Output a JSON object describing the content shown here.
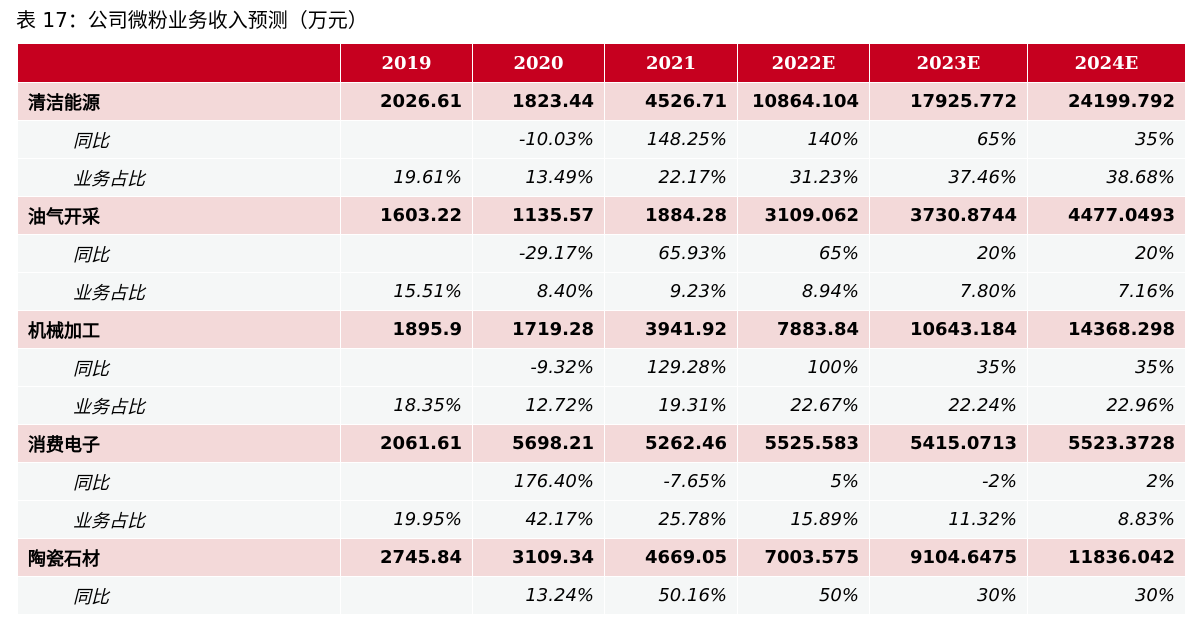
{
  "title": "表 17：公司微粉业务收入预测（万元）",
  "header": [
    "",
    "2019",
    "2020",
    "2021",
    "2022E",
    "2023E",
    "2024E"
  ],
  "rows": [
    {
      "type": "main",
      "label": "清洁能源",
      "values": [
        "2026.61",
        "1823.44",
        "4526.71",
        "10864.104",
        "17925.772",
        "24199.792"
      ]
    },
    {
      "type": "sub",
      "label": "同比",
      "values": [
        "",
        "-10.03%",
        "148.25%",
        "140%",
        "65%",
        "35%"
      ]
    },
    {
      "type": "sub",
      "label": "业务占比",
      "values": [
        "19.61%",
        "13.49%",
        "22.17%",
        "31.23%",
        "37.46%",
        "38.68%"
      ]
    },
    {
      "type": "main",
      "label": "油气开采",
      "values": [
        "1603.22",
        "1135.57",
        "1884.28",
        "3109.062",
        "3730.8744",
        "4477.0493"
      ]
    },
    {
      "type": "sub",
      "label": "同比",
      "values": [
        "",
        "-29.17%",
        "65.93%",
        "65%",
        "20%",
        "20%"
      ]
    },
    {
      "type": "sub",
      "label": "业务占比",
      "values": [
        "15.51%",
        "8.40%",
        "9.23%",
        "8.94%",
        "7.80%",
        "7.16%"
      ]
    },
    {
      "type": "main",
      "label": "机械加工",
      "values": [
        "1895.9",
        "1719.28",
        "3941.92",
        "7883.84",
        "10643.184",
        "14368.298"
      ]
    },
    {
      "type": "sub",
      "label": "同比",
      "values": [
        "",
        "-9.32%",
        "129.28%",
        "100%",
        "35%",
        "35%"
      ]
    },
    {
      "type": "sub",
      "label": "业务占比",
      "values": [
        "18.35%",
        "12.72%",
        "19.31%",
        "22.67%",
        "22.24%",
        "22.96%"
      ]
    },
    {
      "type": "main",
      "label": "消费电子",
      "values": [
        "2061.61",
        "5698.21",
        "5262.46",
        "5525.583",
        "5415.0713",
        "5523.3728"
      ]
    },
    {
      "type": "sub",
      "label": "同比",
      "values": [
        "",
        "176.40%",
        "-7.65%",
        "5%",
        "-2%",
        "2%"
      ]
    },
    {
      "type": "sub",
      "label": "业务占比",
      "values": [
        "19.95%",
        "42.17%",
        "25.78%",
        "15.89%",
        "11.32%",
        "8.83%"
      ]
    },
    {
      "type": "main",
      "label": "陶瓷石材",
      "values": [
        "2745.84",
        "3109.34",
        "4669.05",
        "7003.575",
        "9104.6475",
        "11836.042"
      ]
    },
    {
      "type": "sub",
      "label": "同比",
      "values": [
        "",
        "13.24%",
        "50.16%",
        "50%",
        "30%",
        "30%"
      ]
    }
  ],
  "colors": {
    "header_bg": "#c6001f",
    "main_row_bg": "#f3d9d9",
    "sub_row_bg": "#f5f7f7"
  }
}
